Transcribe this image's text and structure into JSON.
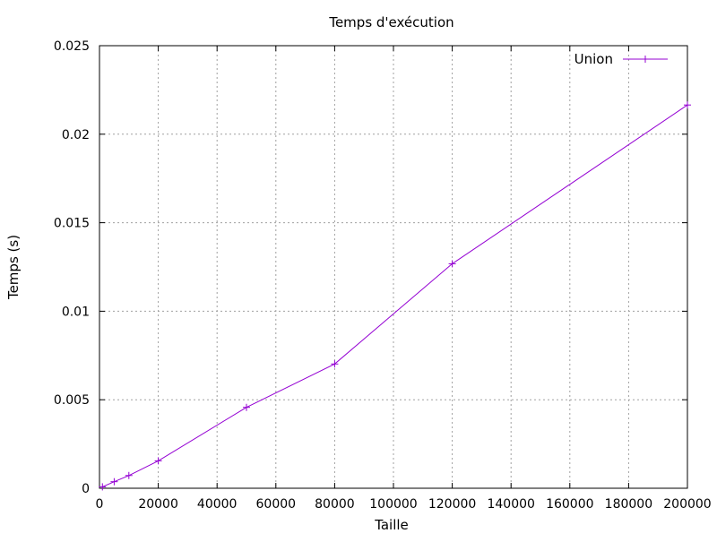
{
  "chart_data": {
    "type": "line",
    "title": "Temps d'exécution",
    "xlabel": "Taille",
    "ylabel": "Temps (s)",
    "xlim": [
      0,
      200000
    ],
    "ylim": [
      0,
      0.025
    ],
    "grid": true,
    "legend_position": "top-right",
    "x_ticks": [
      "0",
      "20000",
      "40000",
      "60000",
      "80000",
      "100000",
      "120000",
      "140000",
      "160000",
      "180000",
      "200000"
    ],
    "y_ticks": [
      "0",
      "0.005",
      "0.01",
      "0.015",
      "0.02",
      "0.025"
    ],
    "series": [
      {
        "name": "Union",
        "color": "#9400d3",
        "marker": "plus",
        "points": [
          {
            "x": 1000,
            "y": 8e-05
          },
          {
            "x": 5000,
            "y": 0.00037
          },
          {
            "x": 10000,
            "y": 0.00072
          },
          {
            "x": 20000,
            "y": 0.00155
          },
          {
            "x": 50000,
            "y": 0.00457
          },
          {
            "x": 80000,
            "y": 0.00702
          },
          {
            "x": 120000,
            "y": 0.01268
          },
          {
            "x": 200000,
            "y": 0.02165
          }
        ]
      }
    ]
  }
}
